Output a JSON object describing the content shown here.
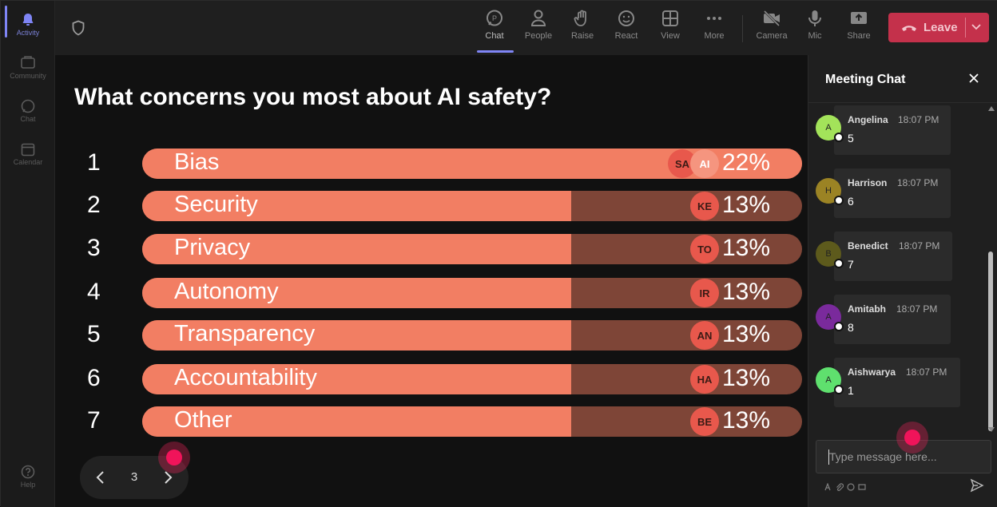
{
  "rail": {
    "items": [
      {
        "label": "Activity"
      },
      {
        "label": "Community"
      },
      {
        "label": "Chat"
      },
      {
        "label": "Calendar"
      },
      {
        "label": "Help"
      }
    ]
  },
  "toolbar": {
    "items": [
      {
        "label": "Chat",
        "icon": "chat-icon"
      },
      {
        "label": "People",
        "icon": "people-icon"
      },
      {
        "label": "Raise",
        "icon": "raise-hand-icon"
      },
      {
        "label": "React",
        "icon": "react-icon"
      },
      {
        "label": "View",
        "icon": "view-icon"
      },
      {
        "label": "More",
        "icon": "more-icon"
      },
      {
        "label": "Camera",
        "icon": "camera-off-icon"
      },
      {
        "label": "Mic",
        "icon": "mic-icon"
      },
      {
        "label": "Share",
        "icon": "share-icon"
      }
    ],
    "leave_label": "Leave",
    "leave_color": "#c4314b"
  },
  "poll": {
    "question": "What concerns you most about AI safety?",
    "fill_color": "#f27e63",
    "track_color": "#7e4537",
    "options": [
      {
        "num": "1",
        "label": "Bias",
        "pct": "22%",
        "share": 1.0,
        "avatars": [
          "SA",
          "AI"
        ]
      },
      {
        "num": "2",
        "label": "Security",
        "pct": "13%",
        "share": 0.65,
        "avatars": [
          "KE"
        ]
      },
      {
        "num": "3",
        "label": "Privacy",
        "pct": "13%",
        "share": 0.65,
        "avatars": [
          "TO"
        ]
      },
      {
        "num": "4",
        "label": "Autonomy",
        "pct": "13%",
        "share": 0.65,
        "avatars": [
          "IR"
        ]
      },
      {
        "num": "5",
        "label": "Transparency",
        "pct": "13%",
        "share": 0.65,
        "avatars": [
          "AN"
        ]
      },
      {
        "num": "6",
        "label": "Accountability",
        "pct": "13%",
        "share": 0.65,
        "avatars": [
          "HA"
        ]
      },
      {
        "num": "7",
        "label": "Other",
        "pct": "13%",
        "share": 0.65,
        "avatars": [
          "BE"
        ]
      }
    ],
    "page": "3"
  },
  "chat": {
    "title": "Meeting Chat",
    "messages": [
      {
        "initial": "A",
        "name": "Angelina",
        "time": "18:07 PM",
        "text": "5",
        "color": "#a3e35a"
      },
      {
        "initial": "H",
        "name": "Harrison",
        "time": "18:07 PM",
        "text": "6",
        "color": "#9b8324"
      },
      {
        "initial": "B",
        "name": "Benedict",
        "time": "18:07 PM",
        "text": "7",
        "color": "#5d5a1c"
      },
      {
        "initial": "A",
        "name": "Amitabh",
        "time": "18:07 PM",
        "text": "8",
        "color": "#7a2a9c"
      },
      {
        "initial": "A",
        "name": "Aishwarya",
        "time": "18:07 PM",
        "text": "1",
        "color": "#5fe06e"
      }
    ],
    "input_placeholder": "Type message here..."
  }
}
